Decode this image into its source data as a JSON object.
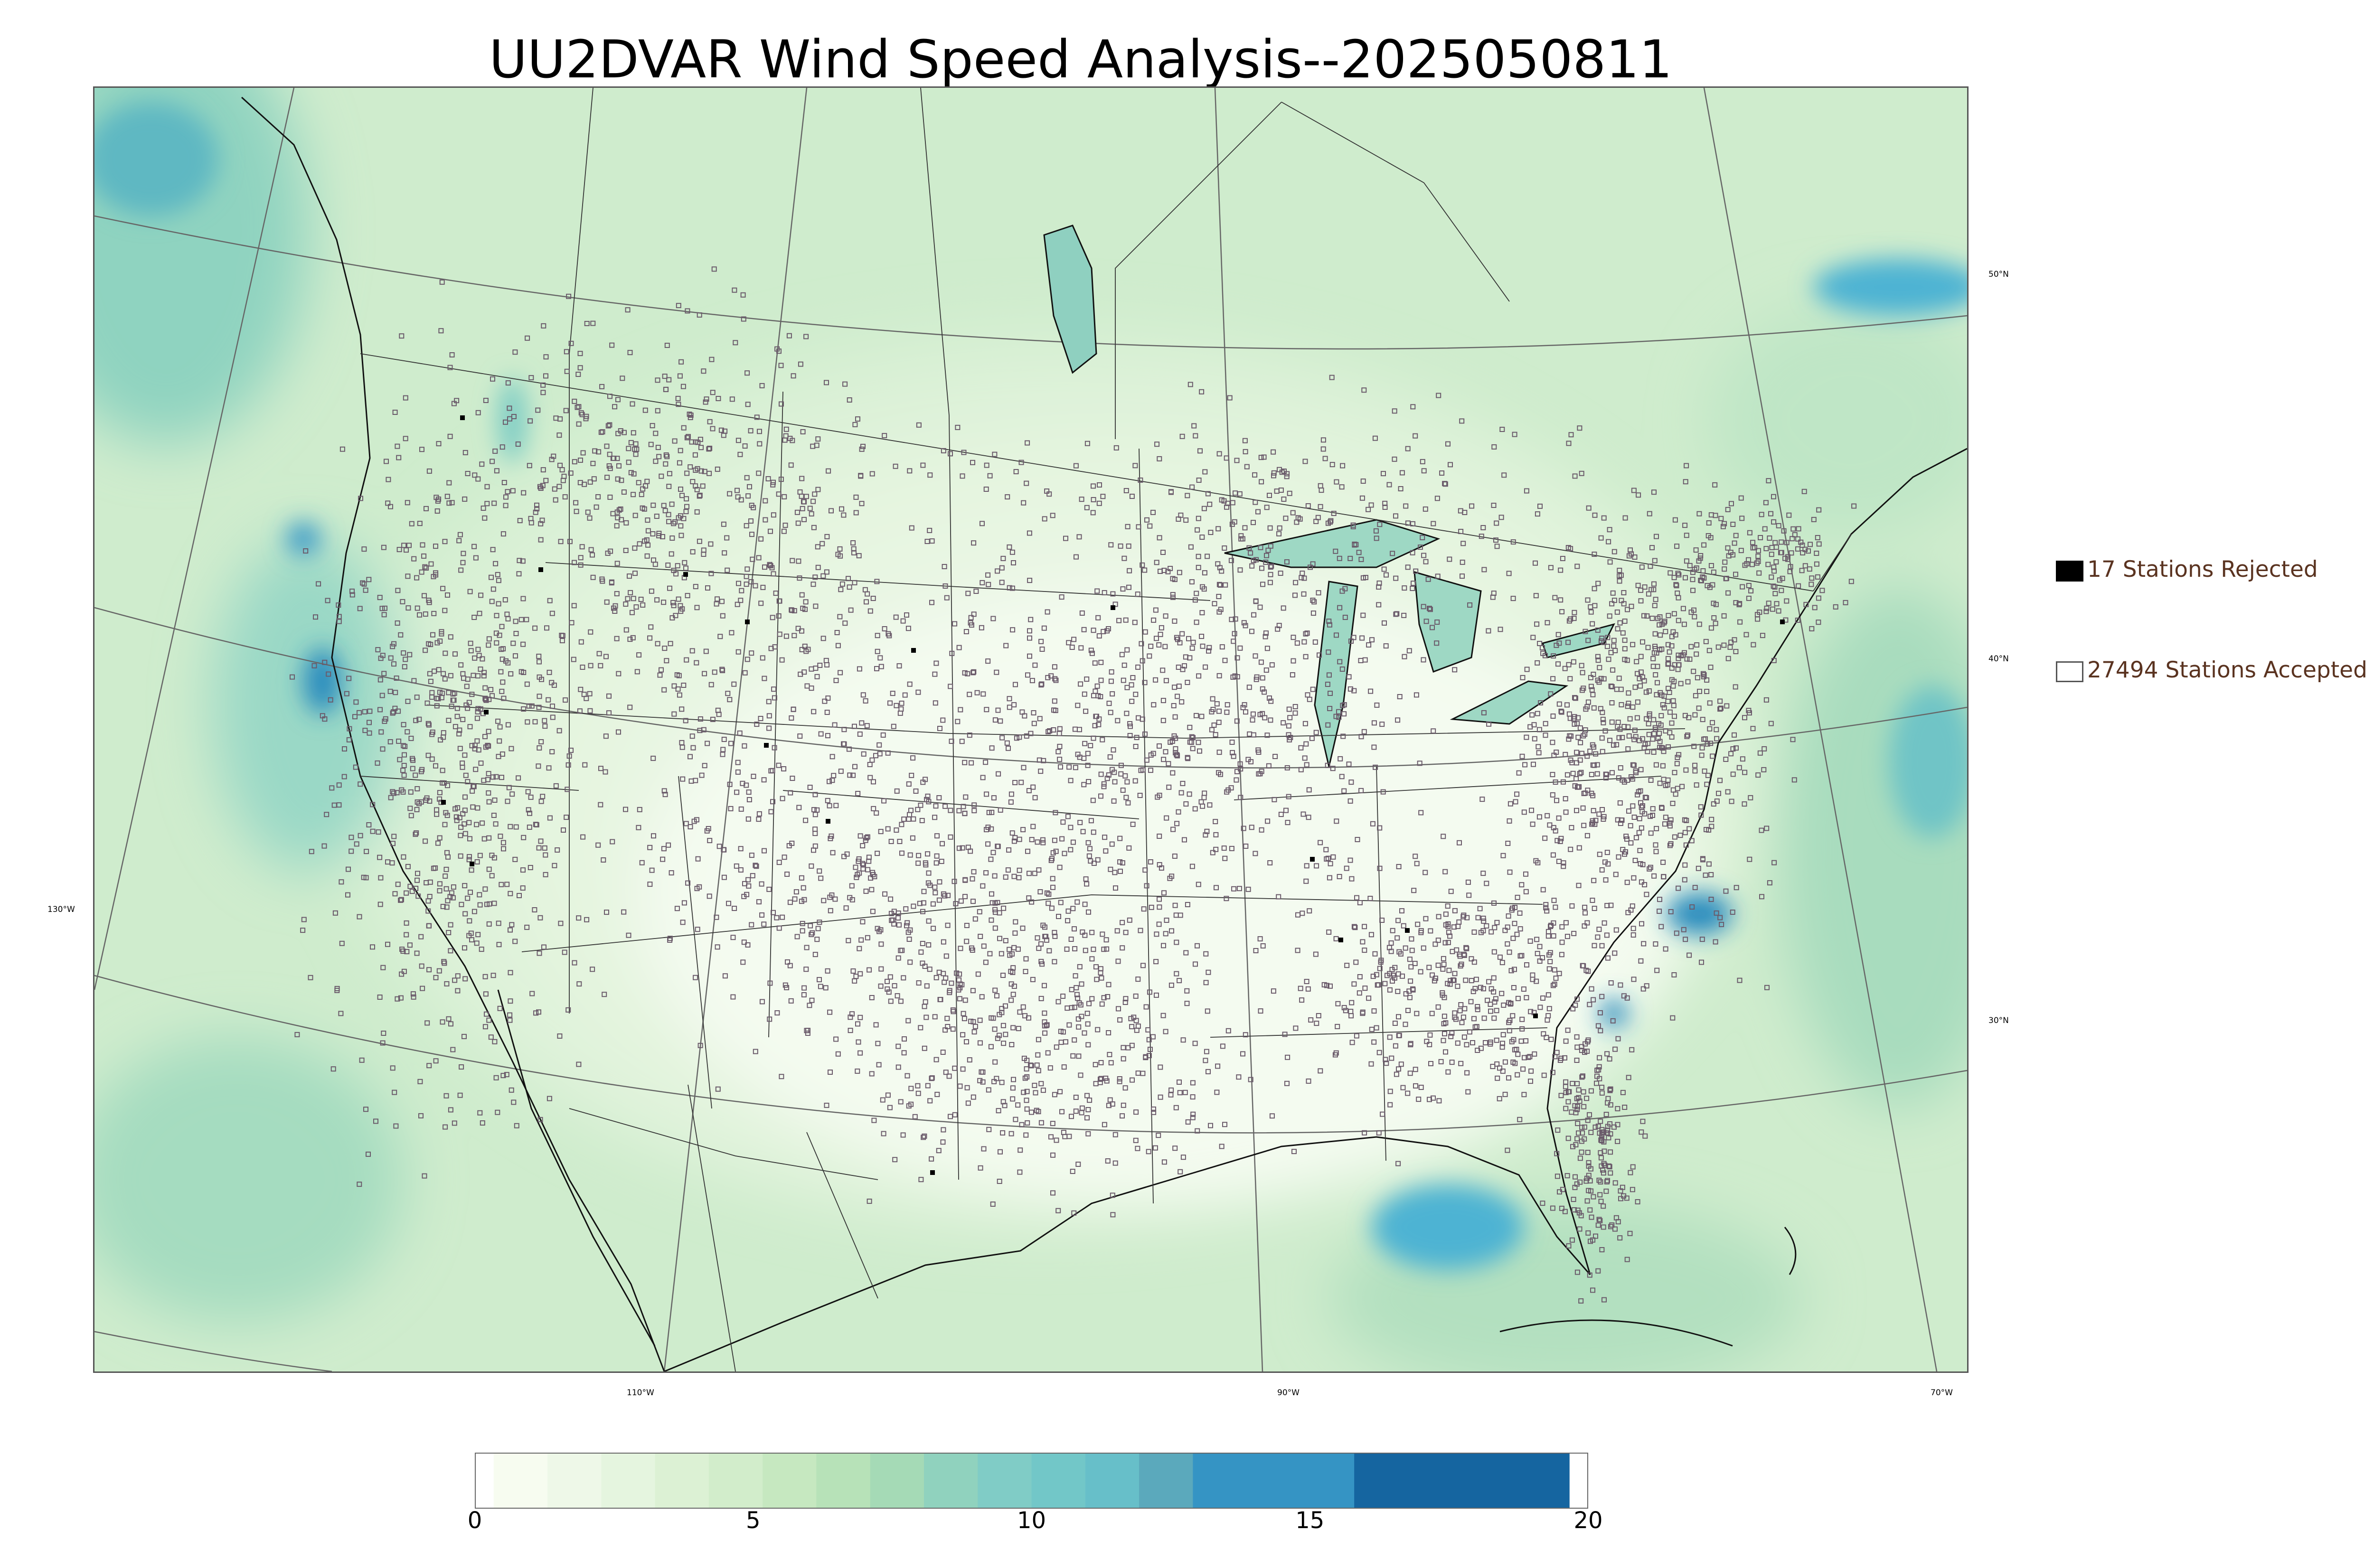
{
  "title": "UU2DVAR Wind Speed Analysis--2025050811",
  "map": {
    "projection": "lambert-conformal",
    "field": "wind speed",
    "colormap": [
      "#f7fcf0",
      "#e0f3db",
      "#ccebc5",
      "#a8ddb5",
      "#7bccc4",
      "#5eb8c2",
      "#4eb3d3",
      "#2b8cbe",
      "#0868ac"
    ],
    "longitude_labels": [
      "130°W",
      "110°W",
      "90°W",
      "70°W"
    ],
    "latitude_labels": [
      "50°N",
      "40°N",
      "30°N"
    ]
  },
  "legend": {
    "rejected": {
      "label": "17 Stations Rejected",
      "count": 17,
      "marker": "filled-black-square"
    },
    "accepted": {
      "label": "27494 Stations Accepted",
      "count": 27494,
      "marker": "hollow-square"
    }
  },
  "colorbar": {
    "min": 0,
    "max": 20,
    "ticks": [
      "0",
      "5",
      "10",
      "15",
      "20"
    ],
    "bands": [
      {
        "from": 0,
        "to": 1,
        "color": "#f7fcf0"
      },
      {
        "from": 1,
        "to": 2,
        "color": "#eef8e8"
      },
      {
        "from": 2,
        "to": 3,
        "color": "#e5f5df"
      },
      {
        "from": 3,
        "to": 4,
        "color": "#dcf1d4"
      },
      {
        "from": 4,
        "to": 5,
        "color": "#d2edcb"
      },
      {
        "from": 5,
        "to": 6,
        "color": "#c6e8c0"
      },
      {
        "from": 6,
        "to": 7,
        "color": "#b7e2b8"
      },
      {
        "from": 7,
        "to": 8,
        "color": "#a5dab6"
      },
      {
        "from": 8,
        "to": 9,
        "color": "#90d2be"
      },
      {
        "from": 9,
        "to": 10,
        "color": "#80ccc6"
      },
      {
        "from": 10,
        "to": 11,
        "color": "#72c7c8"
      },
      {
        "from": 11,
        "to": 12,
        "color": "#67bfc9"
      },
      {
        "from": 12,
        "to": 13,
        "color": "#5ba9bc"
      },
      {
        "from": 13,
        "to": 16,
        "color": "#3594c4"
      },
      {
        "from": 16,
        "to": 20,
        "color": "#1565a0"
      }
    ]
  }
}
